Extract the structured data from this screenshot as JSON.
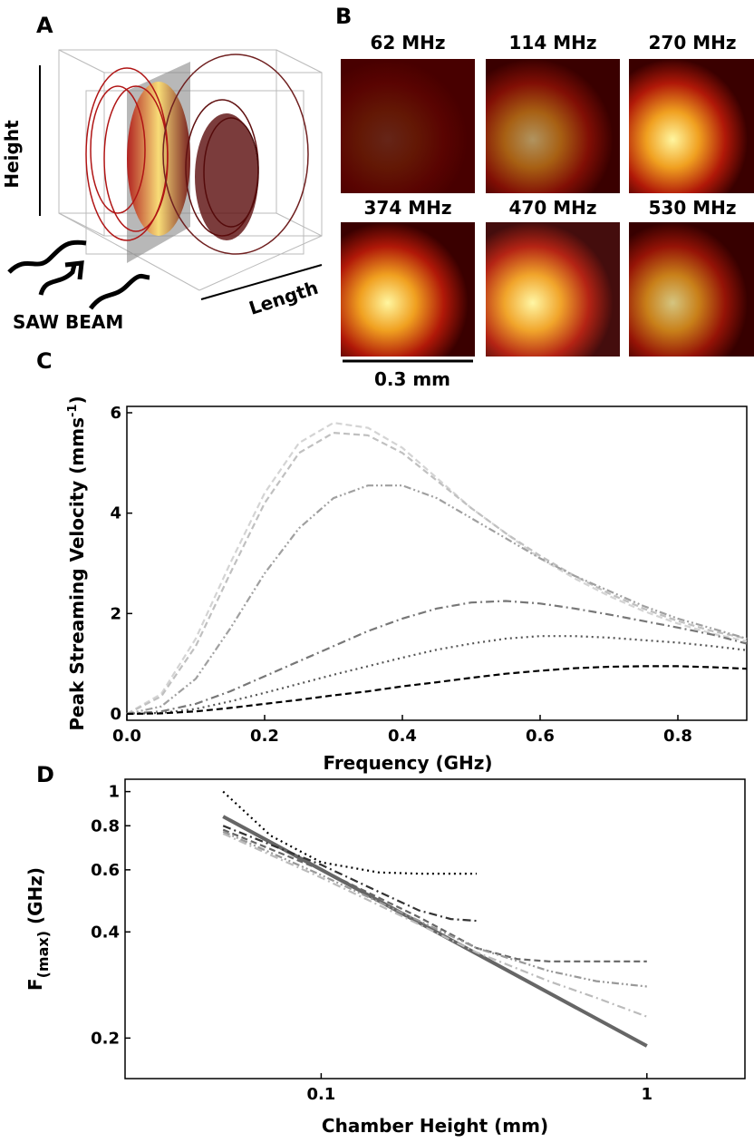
{
  "panel_labels": [
    "A",
    "B",
    "C",
    "D"
  ],
  "panel_a": {
    "height_label": "Height",
    "length_label": "Length",
    "beam_label": "SAW BEAM"
  },
  "panel_b": {
    "maps": [
      "62 MHz",
      "114 MHz",
      "270 MHz",
      "374 MHz",
      "470 MHz",
      "530 MHz"
    ],
    "scale_bar": "0.3 mm"
  },
  "chart_data": [
    {
      "type": "line",
      "xlabel": "Frequency (GHz)",
      "ylabel": "Peak Streaming Velocity (mms",
      "ylabel_sup": "-1",
      "ylabel_end": ")",
      "xlim": [
        0,
        0.9
      ],
      "ylim": [
        0,
        6
      ],
      "xticks": [
        {
          "value": 0,
          "label": "0.0"
        },
        0.2,
        0.4,
        0.6,
        0.8
      ],
      "yticks": [
        0,
        2,
        4,
        6
      ],
      "x": [
        0,
        0.05,
        0.1,
        0.15,
        0.2,
        0.25,
        0.3,
        0.35,
        0.4,
        0.45,
        0.5,
        0.55,
        0.6,
        0.65,
        0.7,
        0.75,
        0.8,
        0.85,
        0.9
      ],
      "series": [
        {
          "color": "#d4d4d4",
          "style": "dashed",
          "values": [
            0,
            0.4,
            1.5,
            3.0,
            4.4,
            5.4,
            5.8,
            5.7,
            5.3,
            4.7,
            4.1,
            3.6,
            3.1,
            2.7,
            2.35,
            2.05,
            1.8,
            1.6,
            1.45
          ]
        },
        {
          "color": "#c0c0c0",
          "style": "dashed",
          "values": [
            0,
            0.35,
            1.35,
            2.8,
            4.2,
            5.2,
            5.6,
            5.55,
            5.2,
            4.65,
            4.1,
            3.6,
            3.15,
            2.75,
            2.4,
            2.1,
            1.85,
            1.65,
            1.5
          ]
        },
        {
          "color": "#a0a0a0",
          "style": "dashdotdot",
          "values": [
            0,
            0.15,
            0.7,
            1.7,
            2.8,
            3.7,
            4.3,
            4.55,
            4.55,
            4.3,
            3.9,
            3.5,
            3.1,
            2.75,
            2.45,
            2.15,
            1.9,
            1.7,
            1.5
          ]
        },
        {
          "color": "#777777",
          "style": "dashdot",
          "values": [
            0,
            0.05,
            0.2,
            0.45,
            0.75,
            1.05,
            1.35,
            1.65,
            1.9,
            2.1,
            2.22,
            2.25,
            2.2,
            2.1,
            1.98,
            1.85,
            1.72,
            1.58,
            1.4
          ]
        },
        {
          "color": "#555555",
          "style": "dotted",
          "values": [
            0,
            0.02,
            0.1,
            0.25,
            0.42,
            0.6,
            0.78,
            0.95,
            1.12,
            1.28,
            1.4,
            1.5,
            1.55,
            1.55,
            1.52,
            1.47,
            1.42,
            1.35,
            1.27
          ]
        },
        {
          "color": "#000000",
          "style": "dashed",
          "values": [
            0,
            0.01,
            0.05,
            0.12,
            0.2,
            0.28,
            0.37,
            0.45,
            0.55,
            0.63,
            0.72,
            0.8,
            0.86,
            0.91,
            0.94,
            0.95,
            0.95,
            0.93,
            0.9
          ]
        }
      ]
    },
    {
      "type": "line",
      "xlabel": "Chamber Height (mm)",
      "ylabel": "F",
      "ylabel_sub": "(max)",
      "ylabel_end": " (GHz)",
      "xlog": true,
      "ylog": true,
      "xlim": [
        0.025,
        2
      ],
      "ylim": [
        0.16,
        1.04
      ],
      "xticks": [
        0.1,
        1
      ],
      "yticks": [
        0.2,
        0.4,
        0.6,
        0.8,
        1
      ],
      "series": [
        {
          "color": "#666666",
          "style": "solid",
          "x": [
            0.05,
            1
          ],
          "values": [
            0.85,
            0.19
          ]
        },
        {
          "color": "#000000",
          "style": "dotted",
          "x": [
            0.05,
            0.07,
            0.1,
            0.15,
            0.2,
            0.3
          ],
          "values": [
            1.0,
            0.75,
            0.63,
            0.59,
            0.585,
            0.585
          ]
        },
        {
          "color": "#333333",
          "style": "dashdot",
          "x": [
            0.05,
            0.1,
            0.15,
            0.2,
            0.25,
            0.3
          ],
          "values": [
            0.8,
            0.62,
            0.52,
            0.46,
            0.435,
            0.43
          ]
        },
        {
          "color": "#666666",
          "style": "dashed",
          "x": [
            0.05,
            0.1,
            0.2,
            0.3,
            0.4,
            0.5,
            0.7,
            1
          ],
          "values": [
            0.78,
            0.6,
            0.44,
            0.36,
            0.335,
            0.33,
            0.33,
            0.33
          ]
        },
        {
          "color": "#999999",
          "style": "dashdotdot",
          "x": [
            0.05,
            0.1,
            0.2,
            0.3,
            0.5,
            0.7,
            1
          ],
          "values": [
            0.77,
            0.58,
            0.43,
            0.36,
            0.31,
            0.29,
            0.28
          ]
        },
        {
          "color": "#bbbbbb",
          "style": "dashdot",
          "x": [
            0.05,
            0.1,
            0.2,
            0.3,
            0.5,
            0.7,
            1
          ],
          "values": [
            0.76,
            0.57,
            0.42,
            0.35,
            0.29,
            0.26,
            0.23
          ]
        }
      ]
    }
  ]
}
